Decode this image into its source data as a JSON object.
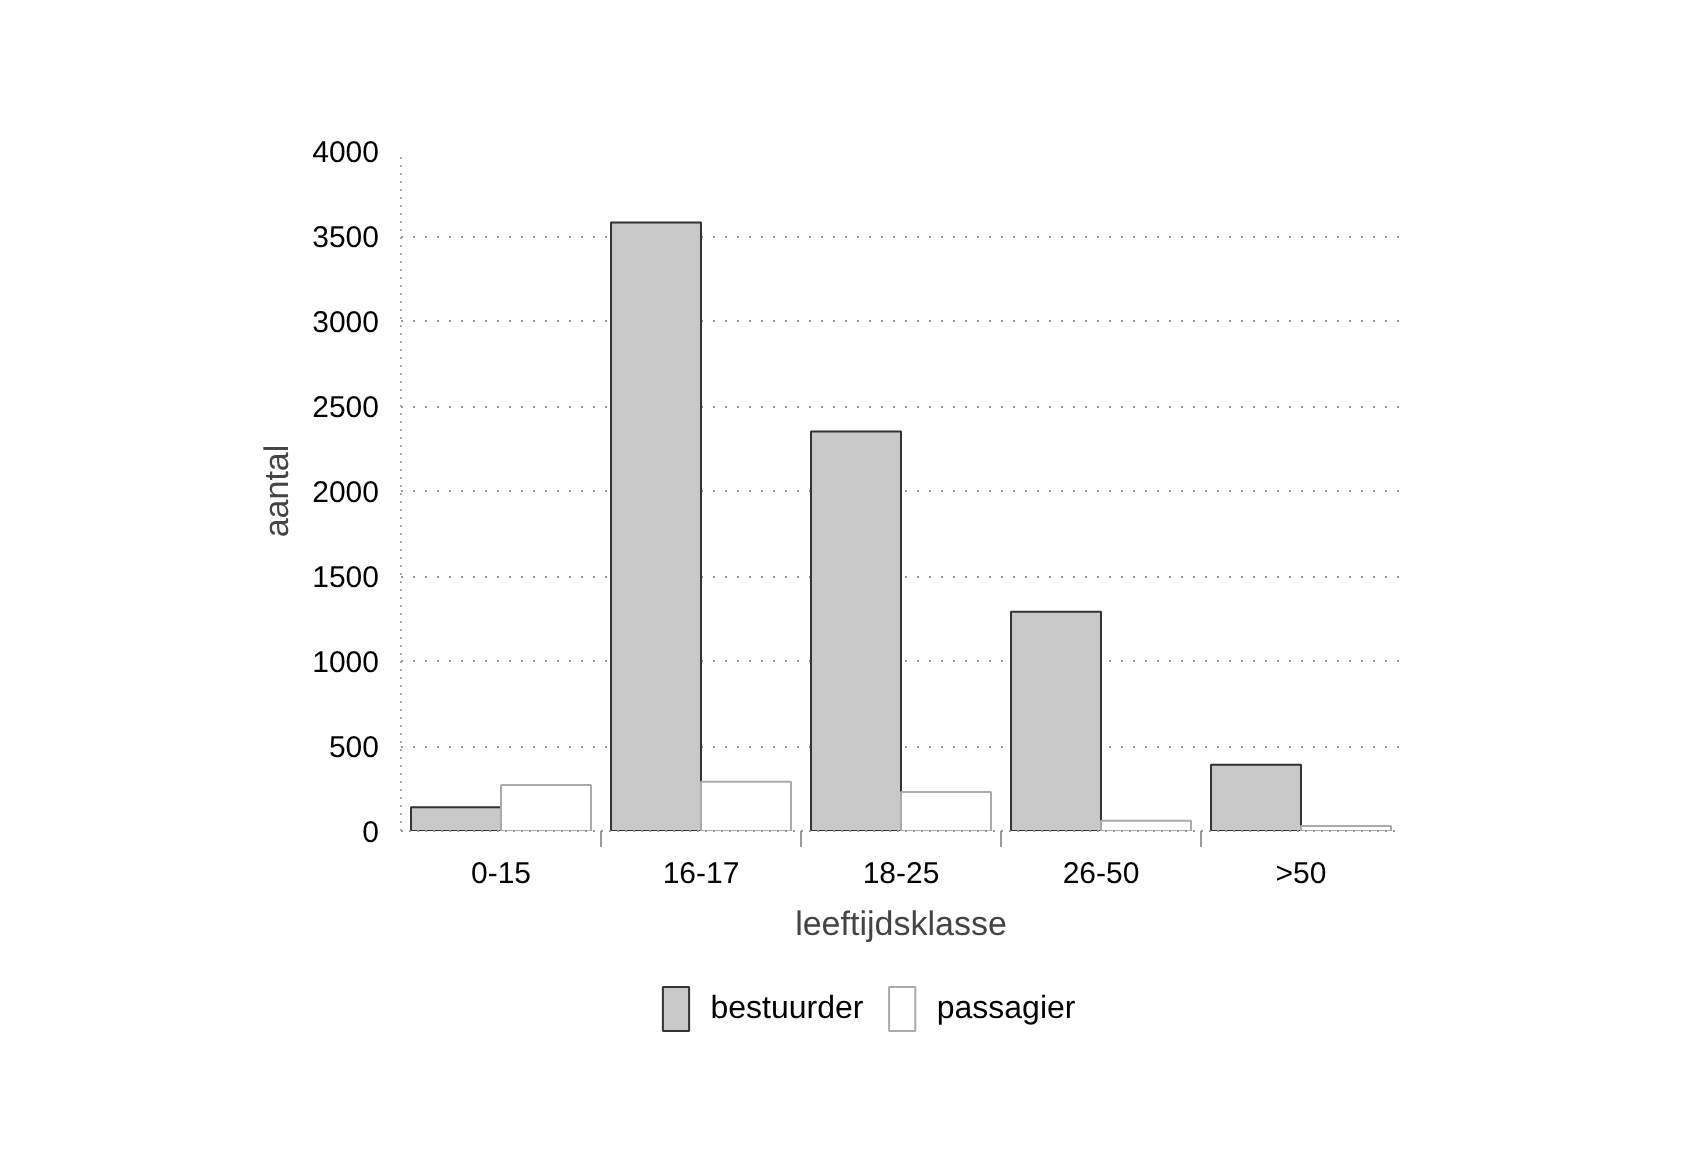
{
  "chart_data": {
    "type": "bar",
    "xlabel": "leeftijdsklasse",
    "ylabel": "aantal",
    "categories": [
      "0-15",
      "16-17",
      "18-25",
      "26-50",
      ">50"
    ],
    "series": [
      {
        "name": "bestuurder",
        "color": "#c8c8c8",
        "values": [
          140,
          3580,
          2350,
          1290,
          390
        ]
      },
      {
        "name": "passagier",
        "color": "#ffffff",
        "values": [
          270,
          290,
          230,
          60,
          30
        ]
      }
    ],
    "ylim": [
      0,
      4000
    ],
    "yticks": [
      0,
      500,
      1000,
      1500,
      2000,
      2500,
      3000,
      3500,
      4000
    ],
    "grid": "y",
    "legend": "bottom"
  }
}
